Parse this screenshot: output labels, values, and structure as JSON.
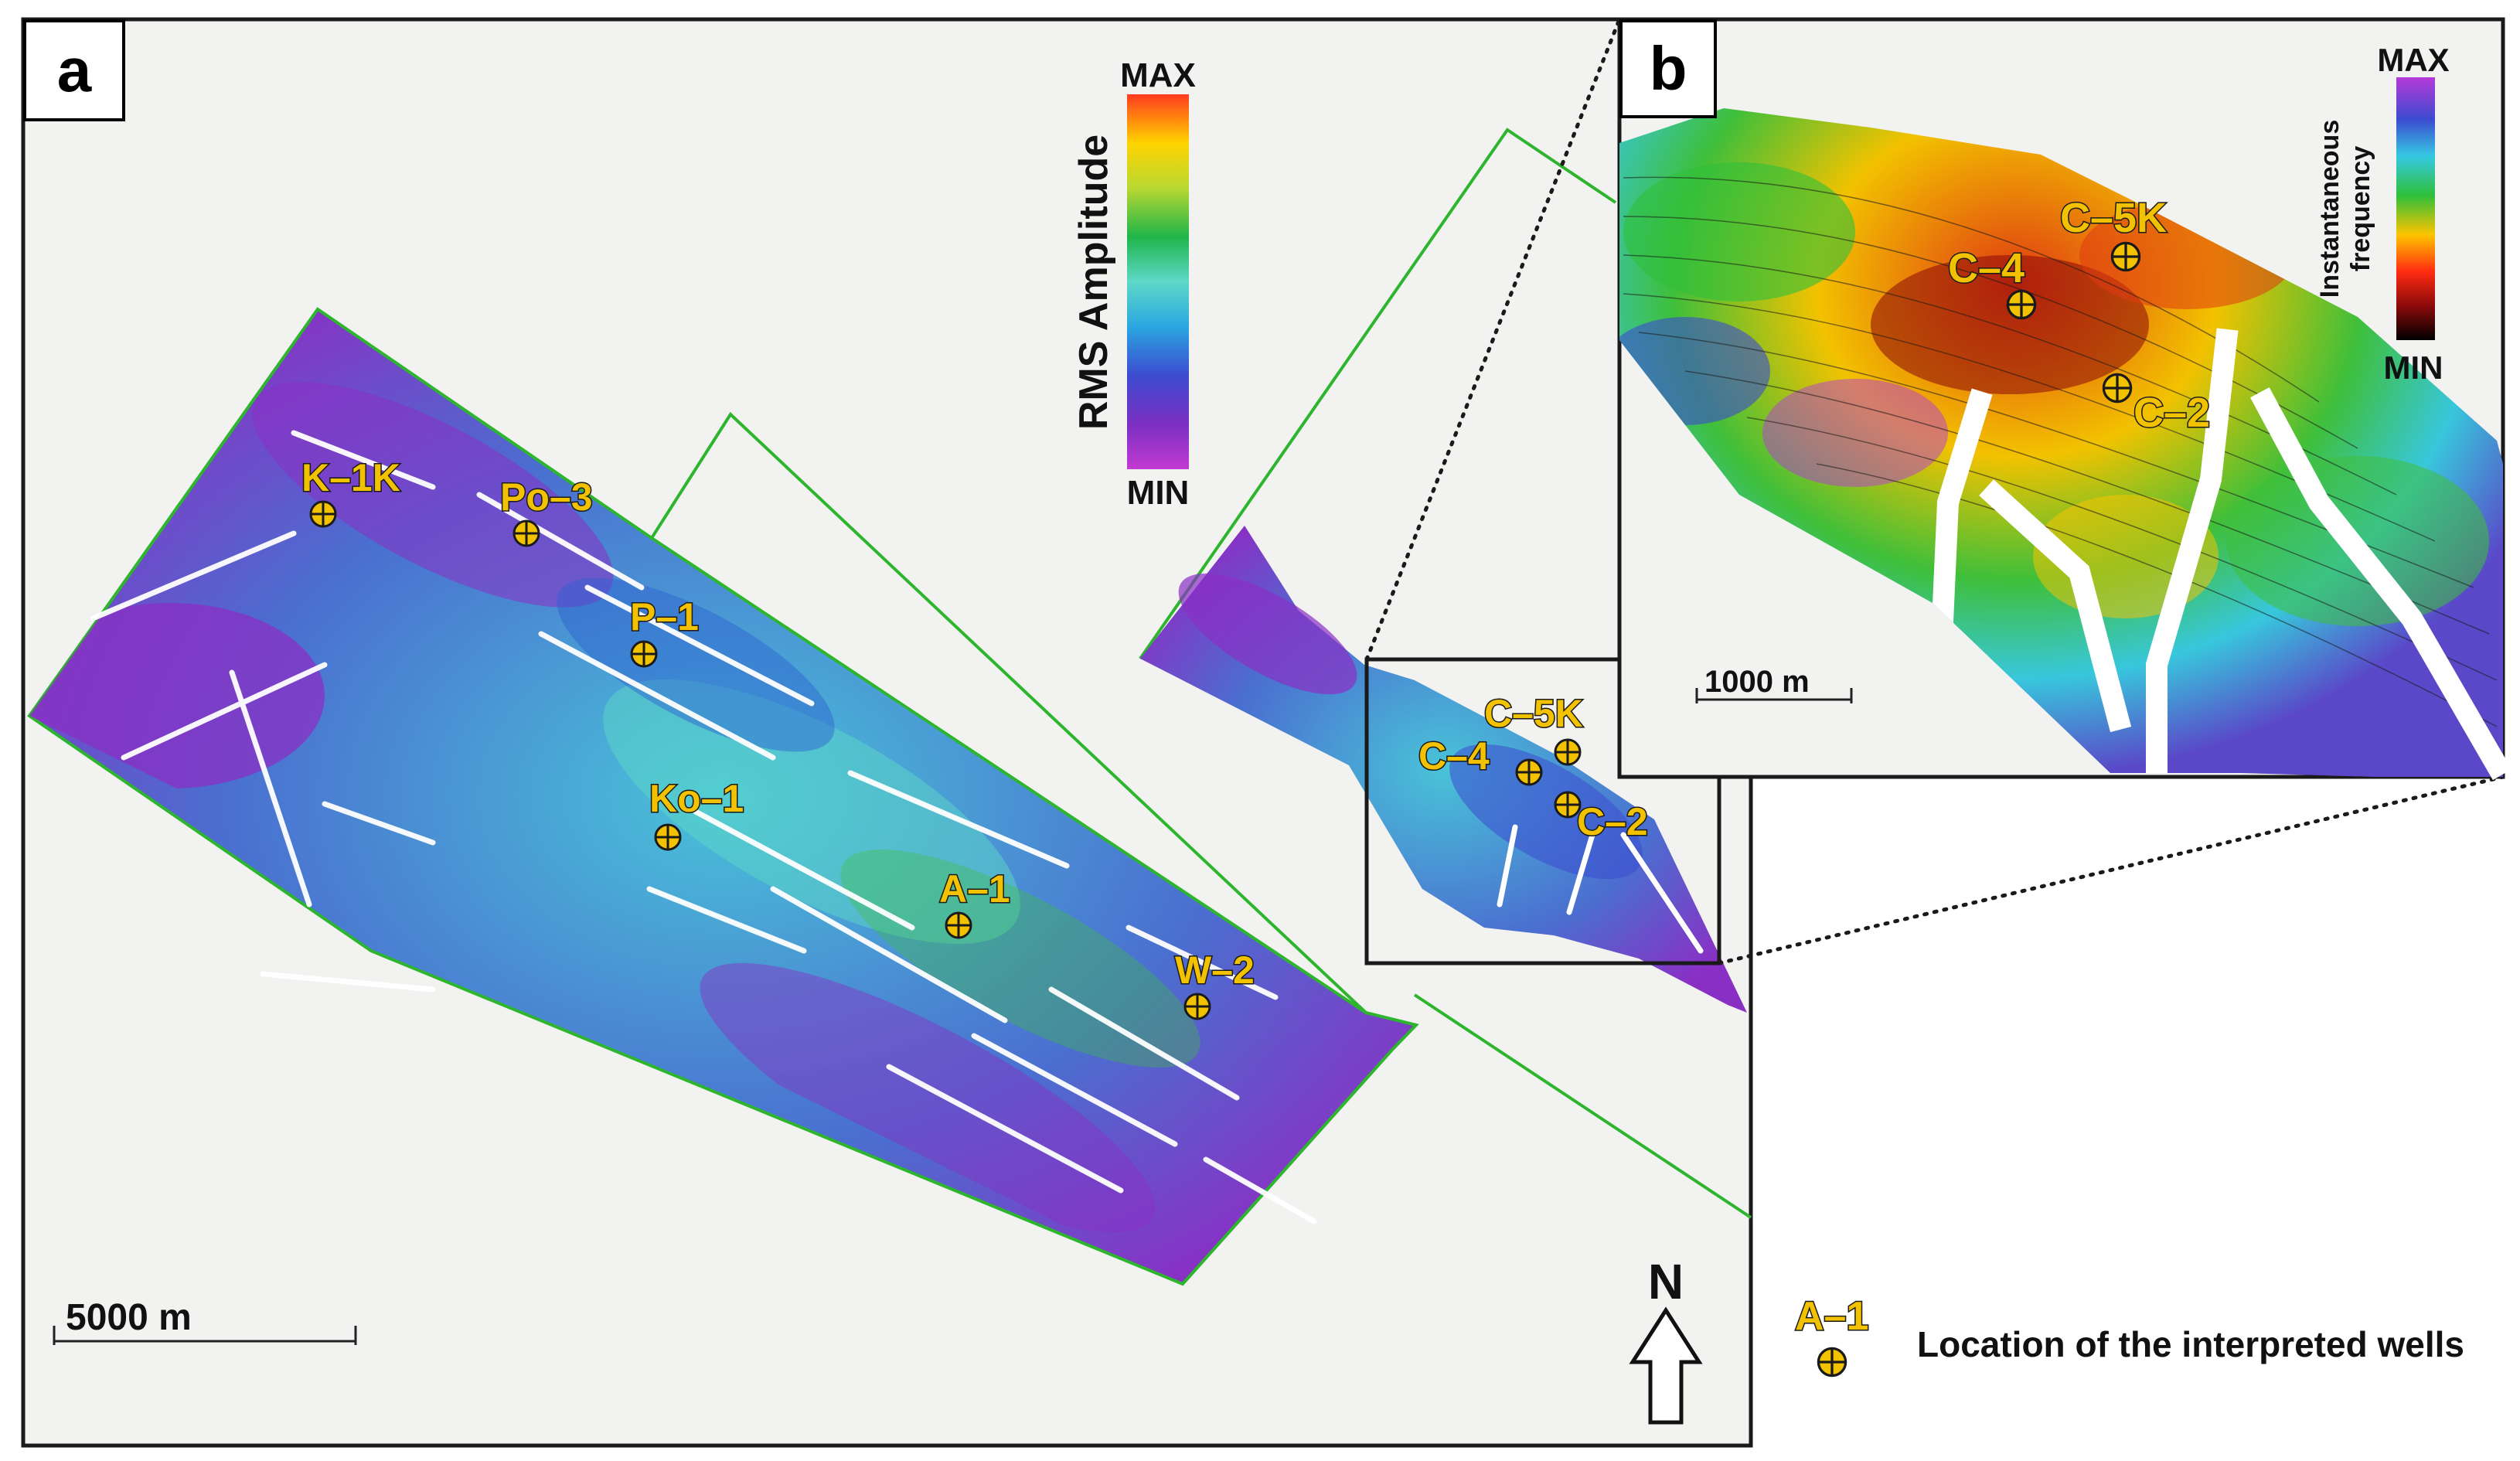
{
  "panels": {
    "a": {
      "label": "a"
    },
    "b": {
      "label": "b"
    }
  },
  "colorbar_a": {
    "title": "RMS Amplitude",
    "max_label": "MAX",
    "min_label": "MIN"
  },
  "colorbar_b": {
    "title_line1": "Instantaneous",
    "title_line2": "frequency",
    "max_label": "MAX",
    "min_label": "MIN"
  },
  "scale_a": {
    "label": "5000 m"
  },
  "scale_b": {
    "label": "1000 m"
  },
  "north_arrow": {
    "label": "N"
  },
  "wells_a": [
    "K–1K",
    "Po–3",
    "P–1",
    "Ko–1",
    "A–1",
    "W–2",
    "C–5K",
    "C–4",
    "C–2"
  ],
  "wells_b": [
    "C–5K",
    "C–4",
    "C–2"
  ],
  "legend": {
    "well_label": "A–1",
    "description": "Location of the interpreted wells"
  },
  "colors": {
    "outline": "#2db52d",
    "well": "#f2c200",
    "frame": "#1a1a1a",
    "background": "#f2f2f1"
  }
}
